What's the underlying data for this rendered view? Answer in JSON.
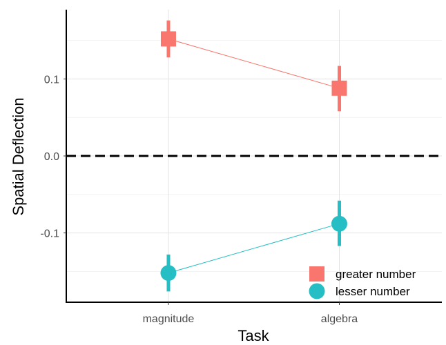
{
  "chart_data": {
    "type": "scatter",
    "xlabel": "Task",
    "ylabel": "Spatial Deflection",
    "categories": [
      "magnitude",
      "algebra"
    ],
    "ylim": [
      -0.19,
      0.19
    ],
    "yticks": [
      -0.1,
      0.0,
      0.1
    ],
    "ytick_labels": [
      "-0.1",
      "0.0",
      "0.1"
    ],
    "grid": true,
    "reference_line": {
      "y": 0.0,
      "style": "dashed",
      "color": "#000000"
    },
    "legend_position": "bottom-right",
    "series": [
      {
        "name": "greater number",
        "color": "#F8766D",
        "marker": "square",
        "values": [
          0.152,
          0.088
        ],
        "error_low": [
          0.128,
          0.058
        ],
        "error_high": [
          0.176,
          0.117
        ]
      },
      {
        "name": "lesser number",
        "color": "#24BEC4",
        "marker": "circle",
        "values": [
          -0.152,
          -0.088
        ],
        "error_low": [
          -0.176,
          -0.117
        ],
        "error_high": [
          -0.128,
          -0.058
        ]
      }
    ]
  }
}
